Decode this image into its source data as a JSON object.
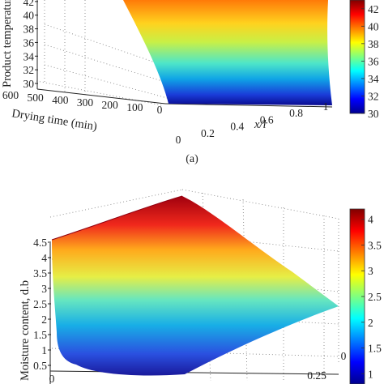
{
  "chart_data": [
    {
      "type": "surface",
      "panel_label": "(a)",
      "xlabel": "x/l",
      "ylabel": "Drying time (min)",
      "zlabel": "Product temperature",
      "x_ticks": [
        "0",
        "0.2",
        "0.4",
        "0.6",
        "0.8",
        "1"
      ],
      "y_ticks": [
        "600",
        "500",
        "400",
        "300",
        "200",
        "100",
        "0"
      ],
      "z_ticks": [
        "30",
        "32",
        "34",
        "36",
        "38",
        "40",
        "42"
      ],
      "zlim": [
        30,
        44
      ],
      "colorbar": {
        "ticks": [
          "30",
          "32",
          "34",
          "36",
          "38",
          "40",
          "42"
        ],
        "range": [
          30,
          43
        ],
        "colormap": "jet"
      }
    },
    {
      "type": "surface",
      "zlabel": "Moisture content, d.b",
      "x_ticks": [
        "0",
        "0.25"
      ],
      "y_ticks": [
        "0"
      ],
      "z_ticks": [
        "0.5",
        "1",
        "1.5",
        "2",
        "2.5",
        "3",
        "3.5",
        "4",
        "4.5"
      ],
      "zlim": [
        0.5,
        4.5
      ],
      "surface_values": {
        "max": 4.2,
        "min": 0.5,
        "converged_edge_value": 2.3
      },
      "colorbar": {
        "ticks": [
          "1",
          "1.5",
          "2",
          "2.5",
          "3",
          "3.5",
          "4"
        ],
        "range": [
          0.8,
          4.2
        ],
        "colormap": "jet"
      }
    }
  ]
}
